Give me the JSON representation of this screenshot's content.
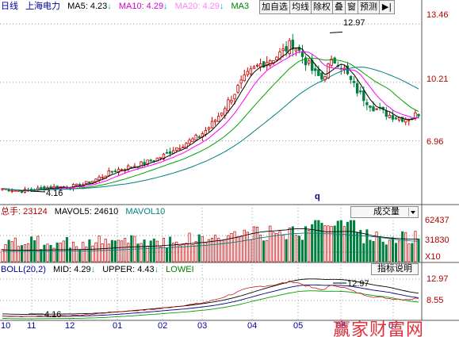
{
  "price_panel": {
    "period": "日线",
    "stock_name": "上海电力",
    "ma5": "MA5: 4.23",
    "ma10": "MA10: 4.29",
    "ma20": "MA20: 4.29",
    "ma_more": "MA3",
    "y_ticks": [
      "13.46",
      "10.21",
      "6.96"
    ],
    "high_marker": "12.97",
    "low_marker": "4.16",
    "stray_text": "q"
  },
  "toolbar": {
    "buttons": [
      "加自选",
      "均线",
      "除权",
      "叠",
      "窗",
      "预测"
    ],
    "arrow": "▶|"
  },
  "volume_panel": {
    "label": "总手: 23124",
    "mavol5": "MAVOL5: 24610",
    "mavol10": "MAVOL10",
    "selector_value": "成交量",
    "y_ticks": [
      "62437",
      "31830"
    ],
    "unit": "X10"
  },
  "boll_panel": {
    "label": "BOLL(20,2)",
    "mid": "MID: 4.29",
    "upper": "UPPER: 4.43",
    "lower": "LOWEI",
    "help_button": "指标说明",
    "y_ticks": [
      "12.97",
      "8.55"
    ],
    "high_marker": "12.97",
    "low_marker": "4.16"
  },
  "x_axis": {
    "labels": [
      "10",
      "11",
      "12",
      "01",
      "02",
      "03",
      "04",
      "05",
      "06",
      "07"
    ]
  },
  "watermark": "赢家财富网",
  "colors": {
    "candle_up": "#c80000",
    "candle_down": "#008040",
    "ma5": "#000000",
    "ma10": "#ff00ff",
    "ma20": "#00a000",
    "ma_long": "#008080",
    "axis_label": "#b00000",
    "grid": "#9b9b9b"
  },
  "chart_data": {
    "type": "candlestick",
    "x_labels": [
      "10",
      "11",
      "12",
      "01",
      "02",
      "03",
      "04",
      "05",
      "06",
      "07"
    ],
    "ylim": [
      3.5,
      14.0
    ],
    "y_ticks": [
      13.46,
      10.21,
      6.96
    ],
    "high": 12.97,
    "low": 4.16,
    "close_path": [
      4.3,
      4.25,
      4.2,
      4.18,
      4.22,
      4.3,
      4.35,
      4.38,
      4.4,
      4.42,
      4.45,
      4.55,
      4.7,
      4.9,
      5.1,
      5.3,
      5.4,
      5.5,
      5.6,
      5.7,
      5.85,
      6.0,
      6.2,
      6.5,
      6.7,
      6.9,
      7.1,
      7.4,
      7.8,
      8.3,
      8.9,
      9.5,
      10.1,
      10.6,
      11.0,
      11.3,
      11.5,
      11.7,
      12.0,
      12.4,
      11.9,
      11.3,
      10.7,
      10.4,
      11.2,
      11.5,
      10.9,
      10.2,
      9.6,
      9.2,
      8.8,
      8.6,
      8.4,
      8.3,
      8.2,
      8.25,
      8.5
    ],
    "volume_ylim": [
      0,
      62437
    ],
    "volume_ticks": [
      62437,
      31830
    ],
    "volume_unit": "X10",
    "boll": {
      "mid": 4.29,
      "upper": 4.43,
      "y_ticks": [
        12.97,
        8.55
      ]
    }
  }
}
